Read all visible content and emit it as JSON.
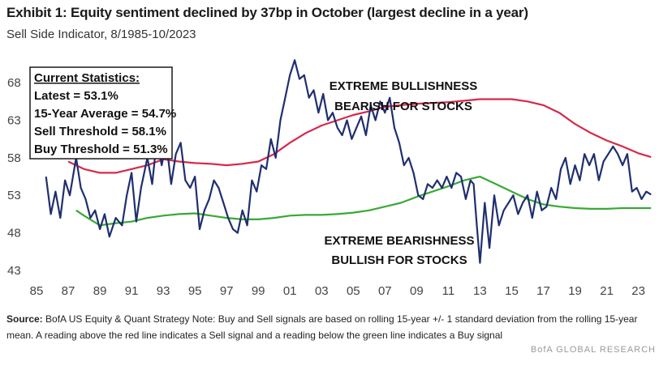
{
  "header": {
    "title": "Exhibit 1: Equity sentiment declined by 37bp in October (largest decline in a year)",
    "subtitle": "Sell Side Indicator, 8/1985-10/2023"
  },
  "stats_box": {
    "heading": "Current Statistics:",
    "latest": "Latest = 53.1%",
    "average": "15-Year Average = 54.7%",
    "sell": "Sell Threshold = 58.1%",
    "buy": "Buy Threshold = 51.3%"
  },
  "annotations": {
    "bull_line1": "EXTREME BULLISHNESS",
    "bull_line2": "BEARISH FOR STOCKS",
    "bear_line1": "EXTREME BEARISHNESS",
    "bear_line2": "BULLISH FOR STOCKS"
  },
  "colors": {
    "indicator": "#1f2f6e",
    "sell_line": "#d6294a",
    "buy_line": "#39a935",
    "axis_text": "#444444"
  },
  "chart_data": {
    "type": "line",
    "title": "Exhibit 1: Equity sentiment declined by 37bp in October (largest decline in a year)",
    "subtitle": "Sell Side Indicator, 8/1985-10/2023",
    "xlabel": "",
    "ylabel": "",
    "xlim": [
      1985,
      2024.2
    ],
    "ylim": [
      43,
      72
    ],
    "x_ticks": [
      1985,
      1987,
      1989,
      1991,
      1993,
      1995,
      1997,
      1999,
      2001,
      2003,
      2005,
      2007,
      2009,
      2011,
      2013,
      2015,
      2017,
      2019,
      2021,
      2023
    ],
    "x_tick_labels": [
      "85",
      "87",
      "89",
      "91",
      "93",
      "95",
      "97",
      "99",
      "01",
      "03",
      "05",
      "07",
      "09",
      "11",
      "13",
      "15",
      "17",
      "19",
      "21",
      "23"
    ],
    "y_ticks": [
      43,
      48,
      53,
      58,
      63,
      68
    ],
    "y_tick_labels": [
      "43",
      "48",
      "53",
      "58",
      "63",
      "68"
    ],
    "grid": false,
    "series": [
      {
        "name": "Sell Side Indicator",
        "x": [
          1985.6,
          1985.9,
          1986.2,
          1986.5,
          1986.8,
          1987.1,
          1987.5,
          1987.8,
          1988.1,
          1988.4,
          1988.7,
          1989.0,
          1989.3,
          1989.6,
          1990.0,
          1990.4,
          1990.7,
          1991.0,
          1991.3,
          1991.6,
          1992.0,
          1992.3,
          1992.6,
          1992.9,
          1993.2,
          1993.5,
          1993.8,
          1994.1,
          1994.4,
          1994.7,
          1995.0,
          1995.3,
          1995.6,
          1995.9,
          1996.2,
          1996.5,
          1996.8,
          1997.1,
          1997.4,
          1997.7,
          1998.0,
          1998.3,
          1998.6,
          1998.9,
          1999.2,
          1999.5,
          1999.8,
          2000.1,
          2000.4,
          2000.7,
          2001.0,
          2001.3,
          2001.6,
          2001.9,
          2002.2,
          2002.5,
          2002.8,
          2003.1,
          2003.4,
          2003.7,
          2004.0,
          2004.3,
          2004.6,
          2004.9,
          2005.2,
          2005.5,
          2005.8,
          2006.1,
          2006.4,
          2006.7,
          2007.0,
          2007.3,
          2007.6,
          2007.9,
          2008.2,
          2008.5,
          2008.8,
          2009.1,
          2009.4,
          2009.7,
          2010.0,
          2010.3,
          2010.6,
          2010.9,
          2011.2,
          2011.5,
          2011.8,
          2012.1,
          2012.4,
          2012.6,
          2012.8,
          2013.0,
          2013.3,
          2013.6,
          2013.9,
          2014.2,
          2014.5,
          2014.8,
          2015.1,
          2015.4,
          2015.7,
          2016.0,
          2016.3,
          2016.6,
          2016.9,
          2017.2,
          2017.5,
          2017.8,
          2018.1,
          2018.4,
          2018.7,
          2019.0,
          2019.3,
          2019.6,
          2019.9,
          2020.2,
          2020.5,
          2020.8,
          2021.1,
          2021.4,
          2021.7,
          2022.0,
          2022.3,
          2022.6,
          2022.9,
          2023.2,
          2023.5,
          2023.8
        ],
        "values": [
          55.5,
          50.5,
          53.5,
          50.0,
          55.0,
          53.0,
          58.0,
          54.0,
          52.5,
          50.0,
          51.0,
          48.5,
          50.5,
          47.5,
          50.0,
          49.0,
          53.0,
          56.0,
          49.5,
          54.0,
          58.0,
          54.5,
          60.5,
          57.0,
          60.0,
          54.5,
          58.5,
          60.0,
          55.0,
          54.0,
          55.5,
          48.5,
          51.0,
          52.5,
          55.0,
          54.0,
          52.0,
          50.0,
          48.5,
          48.0,
          51.0,
          49.0,
          55.0,
          53.5,
          57.0,
          56.5,
          60.5,
          58.0,
          63.0,
          66.0,
          69.0,
          71.0,
          68.5,
          69.0,
          66.0,
          67.0,
          64.0,
          66.5,
          63.0,
          64.0,
          62.0,
          61.0,
          63.0,
          60.5,
          62.0,
          63.5,
          61.0,
          65.0,
          63.0,
          65.5,
          64.0,
          66.0,
          62.0,
          60.0,
          57.0,
          58.0,
          56.0,
          53.0,
          52.5,
          54.5,
          54.0,
          55.0,
          54.0,
          55.5,
          54.0,
          56.0,
          55.5,
          52.5,
          55.0,
          54.5,
          49.0,
          44.0,
          52.0,
          46.0,
          53.0,
          49.0,
          51.0,
          52.0,
          53.0,
          50.5,
          52.0,
          53.0,
          50.0,
          53.5,
          51.0,
          51.5,
          54.0,
          52.5,
          56.5,
          58.0,
          54.5,
          57.0,
          55.0,
          58.5,
          57.0,
          58.5,
          55.0,
          57.5,
          58.5,
          59.5,
          58.5,
          57.0,
          58.5,
          53.5,
          54.0,
          52.5,
          53.5,
          53.1
        ]
      },
      {
        "name": "Sell Threshold",
        "x": [
          1987.0,
          1988.0,
          1989.0,
          1990.0,
          1991.0,
          1992.0,
          1993.0,
          1994.0,
          1995.0,
          1996.0,
          1997.0,
          1998.0,
          1999.0,
          2000.0,
          2001.0,
          2002.0,
          2003.0,
          2004.0,
          2005.0,
          2006.0,
          2007.0,
          2008.0,
          2009.0,
          2010.0,
          2011.0,
          2012.0,
          2013.0,
          2014.0,
          2015.0,
          2016.0,
          2017.0,
          2018.0,
          2019.0,
          2020.0,
          2021.0,
          2022.0,
          2023.0,
          2023.8
        ],
        "values": [
          57.5,
          56.5,
          56.0,
          56.0,
          56.5,
          57.0,
          57.8,
          57.5,
          57.3,
          57.2,
          57.0,
          57.2,
          57.5,
          58.5,
          60.0,
          61.3,
          62.3,
          63.0,
          63.7,
          64.2,
          64.8,
          65.0,
          65.2,
          65.3,
          65.4,
          65.6,
          65.8,
          65.8,
          65.8,
          65.5,
          65.0,
          64.0,
          62.5,
          61.3,
          60.3,
          59.5,
          58.6,
          58.1
        ]
      },
      {
        "name": "Buy Threshold",
        "x": [
          1987.5,
          1988.0,
          1989.0,
          1990.0,
          1991.0,
          1992.0,
          1993.0,
          1994.0,
          1995.0,
          1996.0,
          1997.0,
          1998.0,
          1999.0,
          2000.0,
          2001.0,
          2002.0,
          2003.0,
          2004.0,
          2005.0,
          2006.0,
          2007.0,
          2008.0,
          2009.0,
          2010.0,
          2011.0,
          2012.0,
          2013.0,
          2014.0,
          2015.0,
          2016.0,
          2017.0,
          2018.0,
          2019.0,
          2020.0,
          2021.0,
          2022.0,
          2023.0,
          2023.8
        ],
        "values": [
          51.0,
          50.3,
          49.0,
          49.3,
          49.5,
          50.0,
          50.3,
          50.5,
          50.6,
          50.3,
          50.0,
          49.8,
          49.8,
          50.0,
          50.3,
          50.4,
          50.4,
          50.5,
          50.7,
          51.0,
          51.5,
          52.0,
          52.8,
          53.5,
          54.2,
          55.0,
          55.5,
          54.5,
          53.5,
          52.5,
          51.8,
          51.5,
          51.3,
          51.2,
          51.2,
          51.3,
          51.3,
          51.3
        ]
      }
    ]
  },
  "footer": {
    "source_label": "Source:",
    "source_text": "BofA US Equity & Quant Strategy Note: Buy and Sell signals are based on rolling 15-year +/- 1 standard deviation from the rolling 15-year mean. A reading above the red line indicates a Sell signal and a reading below the green line indicates a Buy signal",
    "brand": "BofA GLOBAL RESEARCH"
  }
}
